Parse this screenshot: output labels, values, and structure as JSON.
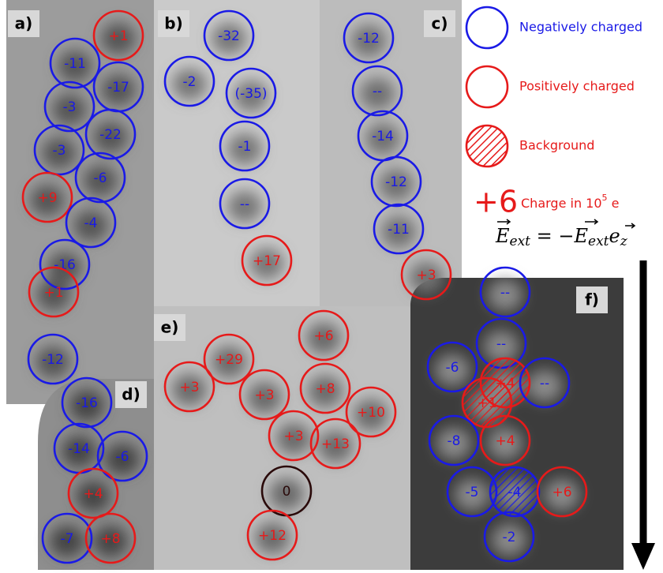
{
  "legend": {
    "items": [
      {
        "kind": "negative",
        "color": "#1a1ae6",
        "label": "Negatively charged"
      },
      {
        "kind": "positive",
        "color": "#e61a1a",
        "label": "Positively charged"
      },
      {
        "kind": "background",
        "color": "#e61a1a",
        "label": "Background"
      }
    ],
    "charge_example": "+6",
    "charge_text": "Charge in 10",
    "charge_exp": "5",
    "charge_unit": " e",
    "equation": {
      "lhs": "E",
      "lhs_sub": "ext",
      "mid": " = −",
      "rhs": "E",
      "rhs_sub": "ext",
      "vec": "e",
      "vec_sub": "z"
    }
  },
  "panels": [
    {
      "label": "a)",
      "circles": [
        {
          "label": "+1",
          "kind": "positive"
        },
        {
          "label": "-11",
          "kind": "negative"
        },
        {
          "label": "-17",
          "kind": "negative"
        },
        {
          "label": "-3",
          "kind": "negative"
        },
        {
          "label": "-22",
          "kind": "negative"
        },
        {
          "label": "-3",
          "kind": "negative"
        },
        {
          "label": "-6",
          "kind": "negative"
        },
        {
          "label": "+9",
          "kind": "positive"
        },
        {
          "label": "-4",
          "kind": "negative"
        },
        {
          "label": "-16",
          "kind": "negative"
        },
        {
          "label": "+1",
          "kind": "positive"
        },
        {
          "label": "-12",
          "kind": "negative"
        }
      ]
    },
    {
      "label": "b)",
      "circles": [
        {
          "label": "-32",
          "kind": "negative"
        },
        {
          "label": "-2",
          "kind": "negative"
        },
        {
          "label": "(-35)",
          "kind": "negative"
        },
        {
          "label": "-1",
          "kind": "negative"
        },
        {
          "label": "--",
          "kind": "negative"
        },
        {
          "label": "+17",
          "kind": "positive"
        }
      ]
    },
    {
      "label": "c)",
      "circles": [
        {
          "label": "-12",
          "kind": "negative"
        },
        {
          "label": "--",
          "kind": "negative"
        },
        {
          "label": "-14",
          "kind": "negative"
        },
        {
          "label": "-12",
          "kind": "negative"
        },
        {
          "label": "-11",
          "kind": "negative"
        },
        {
          "label": "+3",
          "kind": "positive"
        }
      ]
    },
    {
      "label": "d)",
      "circles": [
        {
          "label": "-16",
          "kind": "negative"
        },
        {
          "label": "-14",
          "kind": "negative"
        },
        {
          "label": "-6",
          "kind": "negative"
        },
        {
          "label": "+4",
          "kind": "positive"
        },
        {
          "label": "-7",
          "kind": "negative"
        },
        {
          "label": "+8",
          "kind": "positive"
        }
      ]
    },
    {
      "label": "e)",
      "circles": [
        {
          "label": "+6",
          "kind": "positive"
        },
        {
          "label": "+29",
          "kind": "positive"
        },
        {
          "label": "+3",
          "kind": "positive"
        },
        {
          "label": "+3",
          "kind": "positive"
        },
        {
          "label": "+8",
          "kind": "positive"
        },
        {
          "label": "+10",
          "kind": "positive"
        },
        {
          "label": "+3",
          "kind": "positive"
        },
        {
          "label": "+13",
          "kind": "positive"
        },
        {
          "label": "0",
          "kind": "neutral"
        },
        {
          "label": "+12",
          "kind": "positive"
        }
      ]
    },
    {
      "label": "f)",
      "circles": [
        {
          "label": "--",
          "kind": "negative"
        },
        {
          "label": "--",
          "kind": "negative"
        },
        {
          "label": "-6",
          "kind": "negative"
        },
        {
          "label": "+4",
          "kind": "positive",
          "hatched": true
        },
        {
          "label": "--",
          "kind": "negative"
        },
        {
          "label": "+1",
          "kind": "positive",
          "hatched": true
        },
        {
          "label": "-8",
          "kind": "negative"
        },
        {
          "label": "+4",
          "kind": "positive"
        },
        {
          "label": "-5",
          "kind": "negative"
        },
        {
          "label": "-4",
          "kind": "negative",
          "hatched": true
        },
        {
          "label": "+6",
          "kind": "positive"
        },
        {
          "label": "-2",
          "kind": "negative"
        }
      ]
    }
  ]
}
